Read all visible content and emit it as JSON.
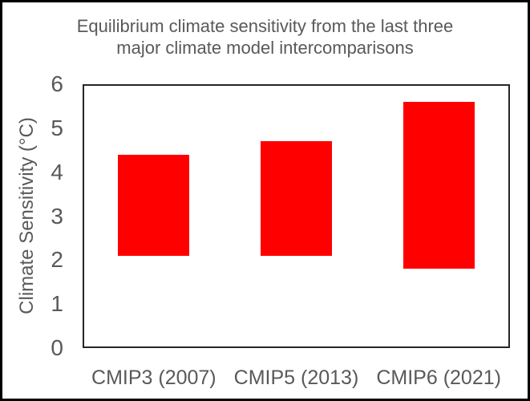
{
  "window": {
    "background": "#ffffff",
    "frame_color": "#000000"
  },
  "chart_data": {
    "type": "bar",
    "subtype": "floating-range-columns",
    "title": "Equilibrium climate sensitivity from the last three major climate model intercomparisons",
    "title_lines": [
      "Equilibrium climate sensitivity from the last three",
      "major climate model intercomparisons"
    ],
    "xlabel": "",
    "ylabel": "Climate Sensitivity (°C)",
    "categories": [
      "CMIP3 (2007)",
      "CMIP5 (2013)",
      "CMIP6 (2021)"
    ],
    "bars": [
      {
        "category": "CMIP3 (2007)",
        "low": 2.1,
        "high": 4.4
      },
      {
        "category": "CMIP5 (2013)",
        "low": 2.1,
        "high": 4.7
      },
      {
        "category": "CMIP6 (2021)",
        "low": 1.8,
        "high": 5.6
      }
    ],
    "ylim": [
      0,
      6
    ],
    "yticks": [
      0,
      1,
      2,
      3,
      4,
      5,
      6
    ],
    "bar_color": "#ff0000",
    "text_color": "#595959",
    "axis_line_color": "#262626",
    "grid": false,
    "legend": false
  }
}
